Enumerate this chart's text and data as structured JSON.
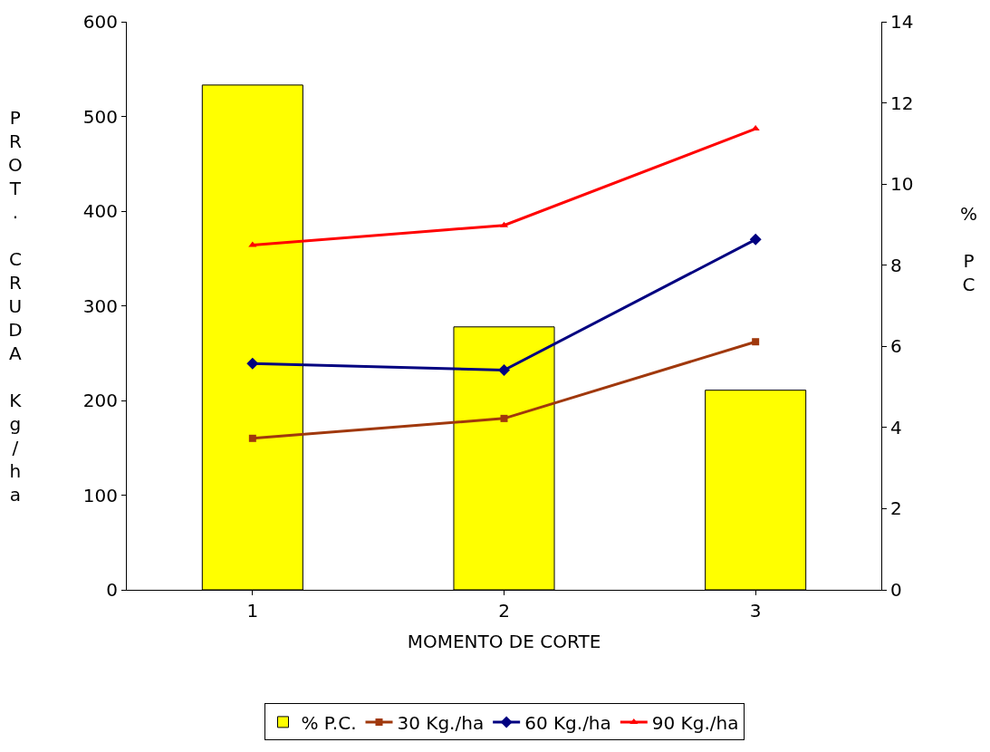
{
  "chart_data": {
    "type": "bar",
    "xlabel": "MOMENTO DE CORTE",
    "ylabel": "PROT. CRUDA Kg/ha",
    "y2label": "% PC",
    "categories": [
      "1",
      "2",
      "3"
    ],
    "series": [
      {
        "name": "% P.C.",
        "axis": "y2",
        "color": "#ffff00",
        "values": [
          12.44,
          6.48,
          4.92
        ]
      },
      {
        "name": "30 Kg./ha",
        "type": "line",
        "color": "#a0380c",
        "marker": "square",
        "values": [
          160,
          181,
          262
        ]
      },
      {
        "name": "60 Kg./ha",
        "type": "line",
        "color": "#000080",
        "marker": "diamond",
        "values": [
          239,
          232,
          370
        ]
      },
      {
        "name": "90 Kg./ha",
        "type": "line",
        "color": "#ff0000",
        "marker": "triangle",
        "values": [
          364,
          385,
          487
        ]
      }
    ],
    "ylim": [
      0,
      600
    ],
    "yticks": [
      0,
      100,
      200,
      300,
      400,
      500,
      600
    ],
    "y2lim": [
      0,
      14
    ],
    "y2ticks": [
      0,
      2,
      4,
      6,
      8,
      10,
      12,
      14
    ],
    "grid": false,
    "legend": "bottom"
  }
}
